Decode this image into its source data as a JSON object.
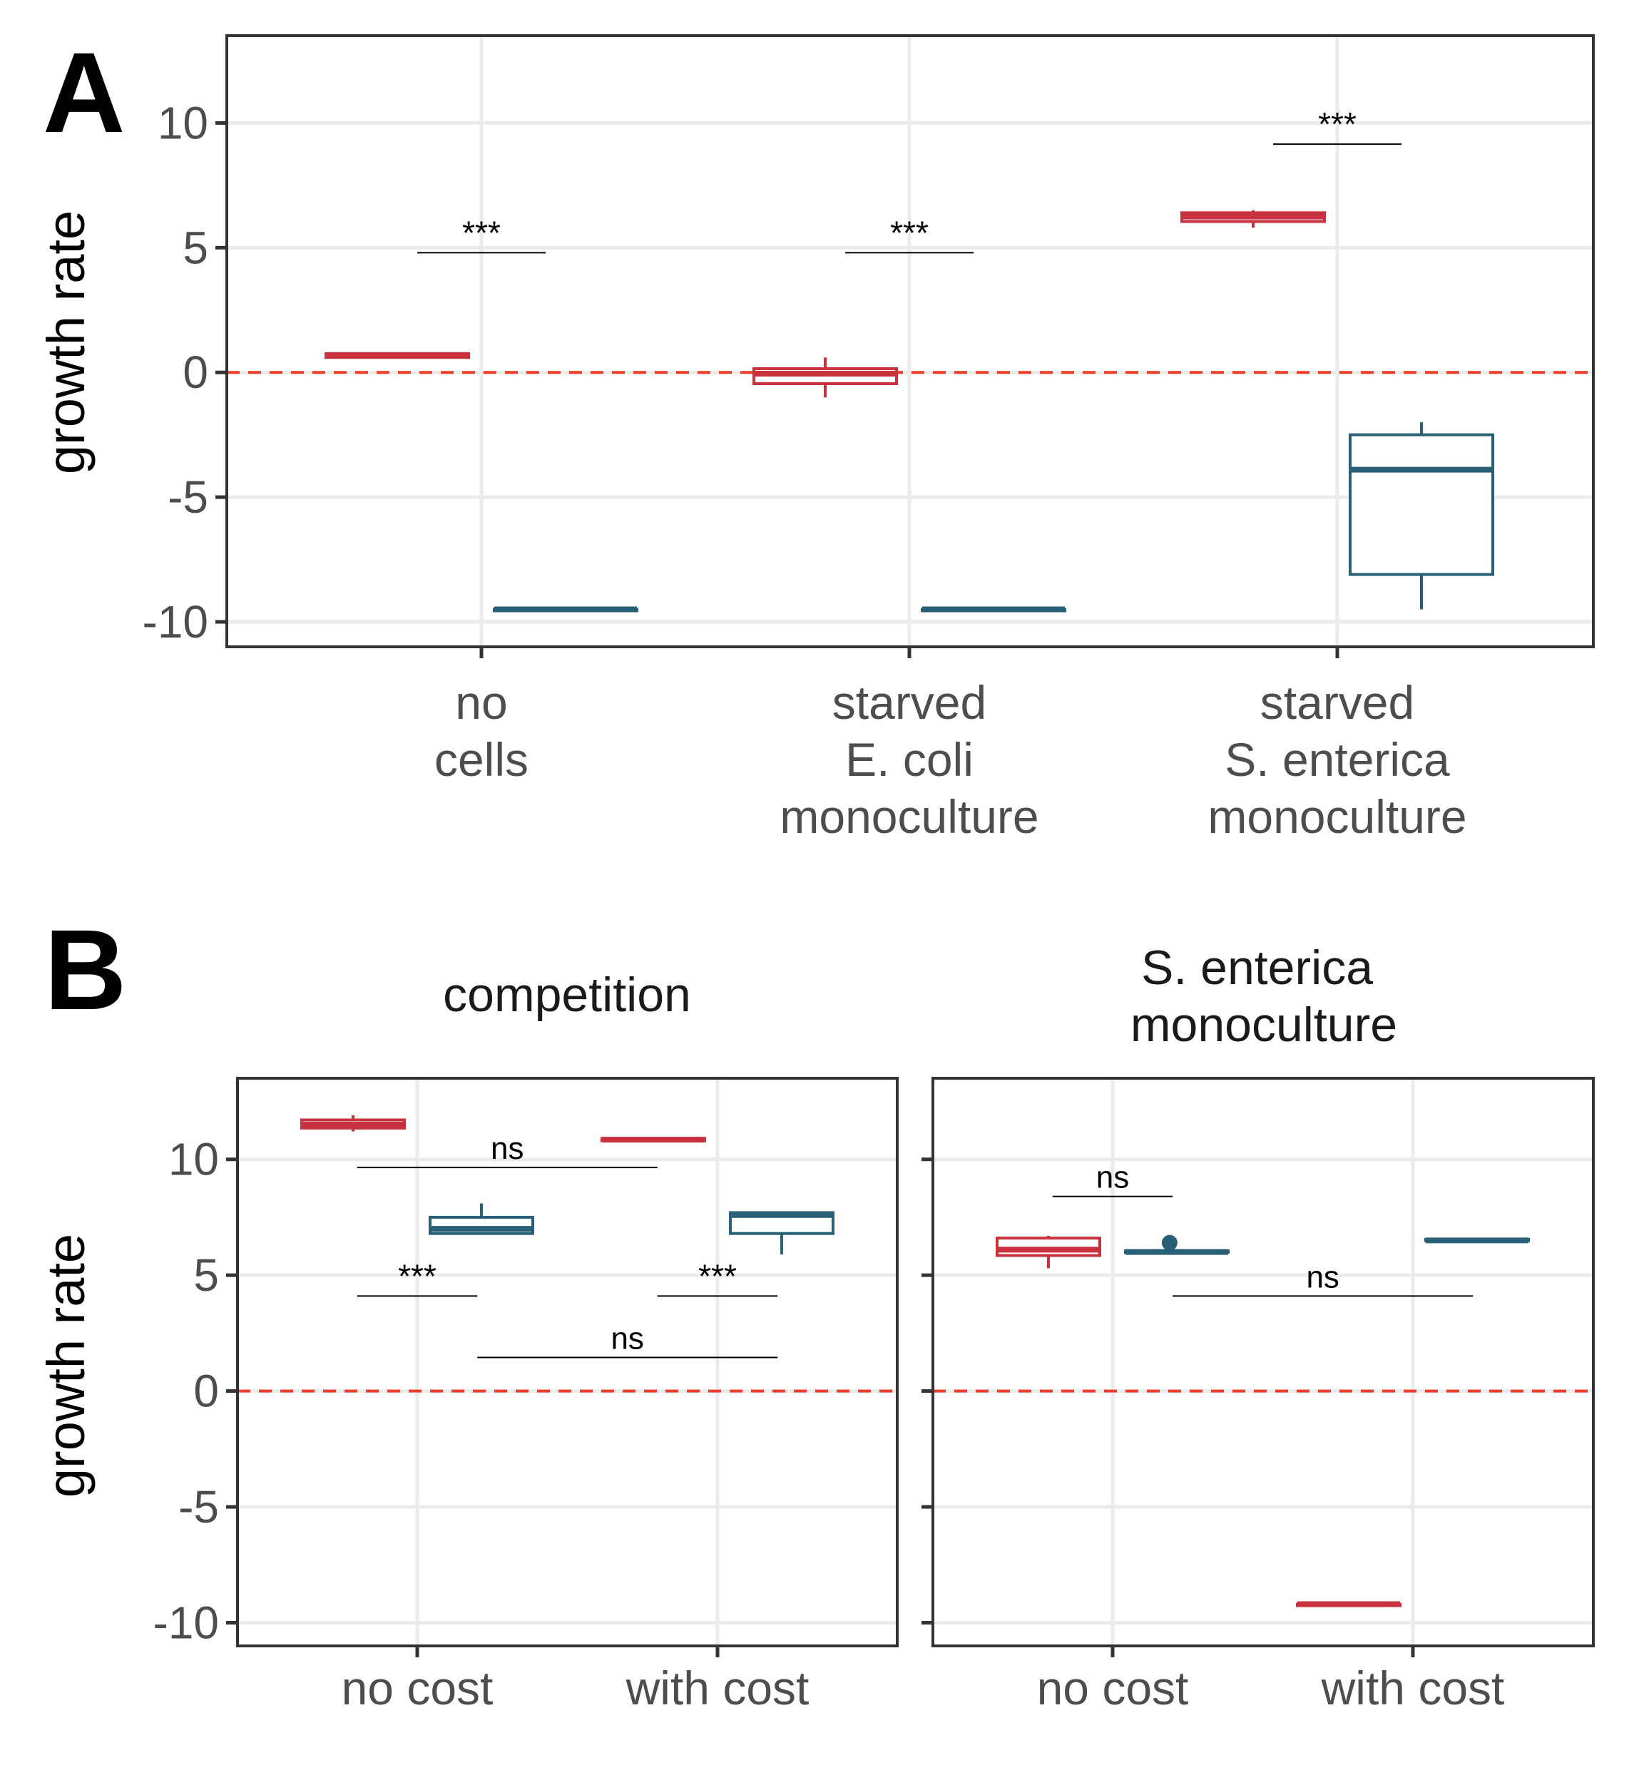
{
  "colors": {
    "red": "#c8323e",
    "blue": "#286078",
    "zero_line": "#f03c28",
    "grid": "#ebebeb",
    "frame": "#333333",
    "tick_text": "#4d4d4d"
  },
  "chart_data": [
    {
      "panel": "A",
      "type": "box",
      "ylabel": "growth rate",
      "ylim": [
        -11,
        13.5
      ],
      "yticks": [
        10,
        5,
        0,
        -5,
        -10
      ],
      "grid": true,
      "reference_line": {
        "y": 0,
        "style": "dashed"
      },
      "categories": [
        {
          "lines": [
            "no",
            "cells"
          ]
        },
        {
          "lines": [
            "starved",
            "E. coli",
            "monoculture"
          ]
        },
        {
          "lines": [
            "starved",
            "S. enterica",
            "monoculture"
          ]
        }
      ],
      "series": [
        {
          "color": "red",
          "boxes": [
            {
              "min": 0.55,
              "q1": 0.6,
              "median": 0.7,
              "q3": 0.75,
              "max": 0.8
            },
            {
              "min": -1.0,
              "q1": -0.45,
              "median": -0.05,
              "q3": 0.15,
              "max": 0.6
            },
            {
              "min": 5.8,
              "q1": 6.05,
              "median": 6.25,
              "q3": 6.4,
              "max": 6.5
            }
          ]
        },
        {
          "color": "blue",
          "boxes": [
            {
              "min": -9.5,
              "q1": -9.5,
              "median": -9.5,
              "q3": -9.5,
              "max": -9.5
            },
            {
              "min": -9.5,
              "q1": -9.5,
              "median": -9.5,
              "q3": -9.5,
              "max": -9.5
            },
            {
              "min": -9.5,
              "q1": -8.1,
              "median": -3.9,
              "q3": -2.5,
              "max": -2.0
            }
          ]
        }
      ],
      "annotations": [
        {
          "label": "***",
          "x_from": 0,
          "x_to": 0,
          "y": 4.8
        },
        {
          "label": "***",
          "x_from": 1,
          "x_to": 1,
          "y": 4.8
        },
        {
          "label": "***",
          "x_from": 2,
          "x_to": 2,
          "y": 9.15
        }
      ]
    },
    {
      "panel": "B",
      "facet": "competition",
      "type": "box",
      "ylabel": "growth rate",
      "ylim": [
        -11,
        13.5
      ],
      "yticks": [
        10,
        5,
        0,
        -5,
        -10
      ],
      "grid": true,
      "reference_line": {
        "y": 0,
        "style": "dashed"
      },
      "categories": [
        {
          "lines": [
            "no cost"
          ]
        },
        {
          "lines": [
            "with cost"
          ]
        }
      ],
      "series": [
        {
          "color": "red",
          "boxes": [
            {
              "min": 11.2,
              "q1": 11.35,
              "median": 11.5,
              "q3": 11.7,
              "max": 11.9
            },
            {
              "min": 10.75,
              "q1": 10.8,
              "median": 10.85,
              "q3": 10.9,
              "max": 10.95
            }
          ]
        },
        {
          "color": "blue",
          "boxes": [
            {
              "min": 6.8,
              "q1": 6.8,
              "median": 7.0,
              "q3": 7.5,
              "max": 8.1
            },
            {
              "min": 5.9,
              "q1": 6.8,
              "median": 7.6,
              "q3": 7.7,
              "max": 7.7
            }
          ]
        }
      ],
      "annotations": [
        {
          "label": "ns",
          "x_from": -0.2,
          "x_to": 0.8,
          "y": 9.65
        },
        {
          "label": "***",
          "x_from": -0.2,
          "x_to": 0.2,
          "y": 4.1
        },
        {
          "label": "***",
          "x_from": 0.8,
          "x_to": 1.2,
          "y": 4.1
        },
        {
          "label": "ns",
          "x_from": 0.2,
          "x_to": 1.2,
          "y": 1.45
        }
      ]
    },
    {
      "panel": "B",
      "facet": "S. enterica monoculture",
      "type": "box",
      "ylim": [
        -11,
        13.5
      ],
      "yticks": [
        10,
        5,
        0,
        -5,
        -10
      ],
      "grid": true,
      "reference_line": {
        "y": 0,
        "style": "dashed"
      },
      "categories": [
        {
          "lines": [
            "no cost"
          ]
        },
        {
          "lines": [
            "with cost"
          ]
        }
      ],
      "series": [
        {
          "color": "red",
          "boxes": [
            {
              "min": 5.3,
              "q1": 5.85,
              "median": 6.1,
              "q3": 6.6,
              "max": 6.7
            },
            {
              "min": -9.2,
              "q1": -9.2,
              "median": -9.2,
              "q3": -9.2,
              "max": -9.2
            }
          ]
        },
        {
          "color": "blue",
          "boxes": [
            {
              "min": 6.0,
              "q1": 6.0,
              "median": 6.0,
              "q3": 6.05,
              "max": 6.05,
              "outliers": [
                6.4
              ]
            },
            {
              "min": 6.5,
              "q1": 6.5,
              "median": 6.5,
              "q3": 6.55,
              "max": 6.55
            }
          ]
        }
      ],
      "annotations": [
        {
          "label": "ns",
          "x_from": -0.2,
          "x_to": 0.2,
          "y": 8.4
        },
        {
          "label": "ns",
          "x_from": 0.2,
          "x_to": 1.2,
          "y": 4.1
        }
      ]
    }
  ],
  "facet_titles": {
    "competition": [
      "competition"
    ],
    "monoculture": [
      "S. enterica",
      "monoculture"
    ]
  },
  "panel_labels": {
    "a": "A",
    "b": "B"
  }
}
